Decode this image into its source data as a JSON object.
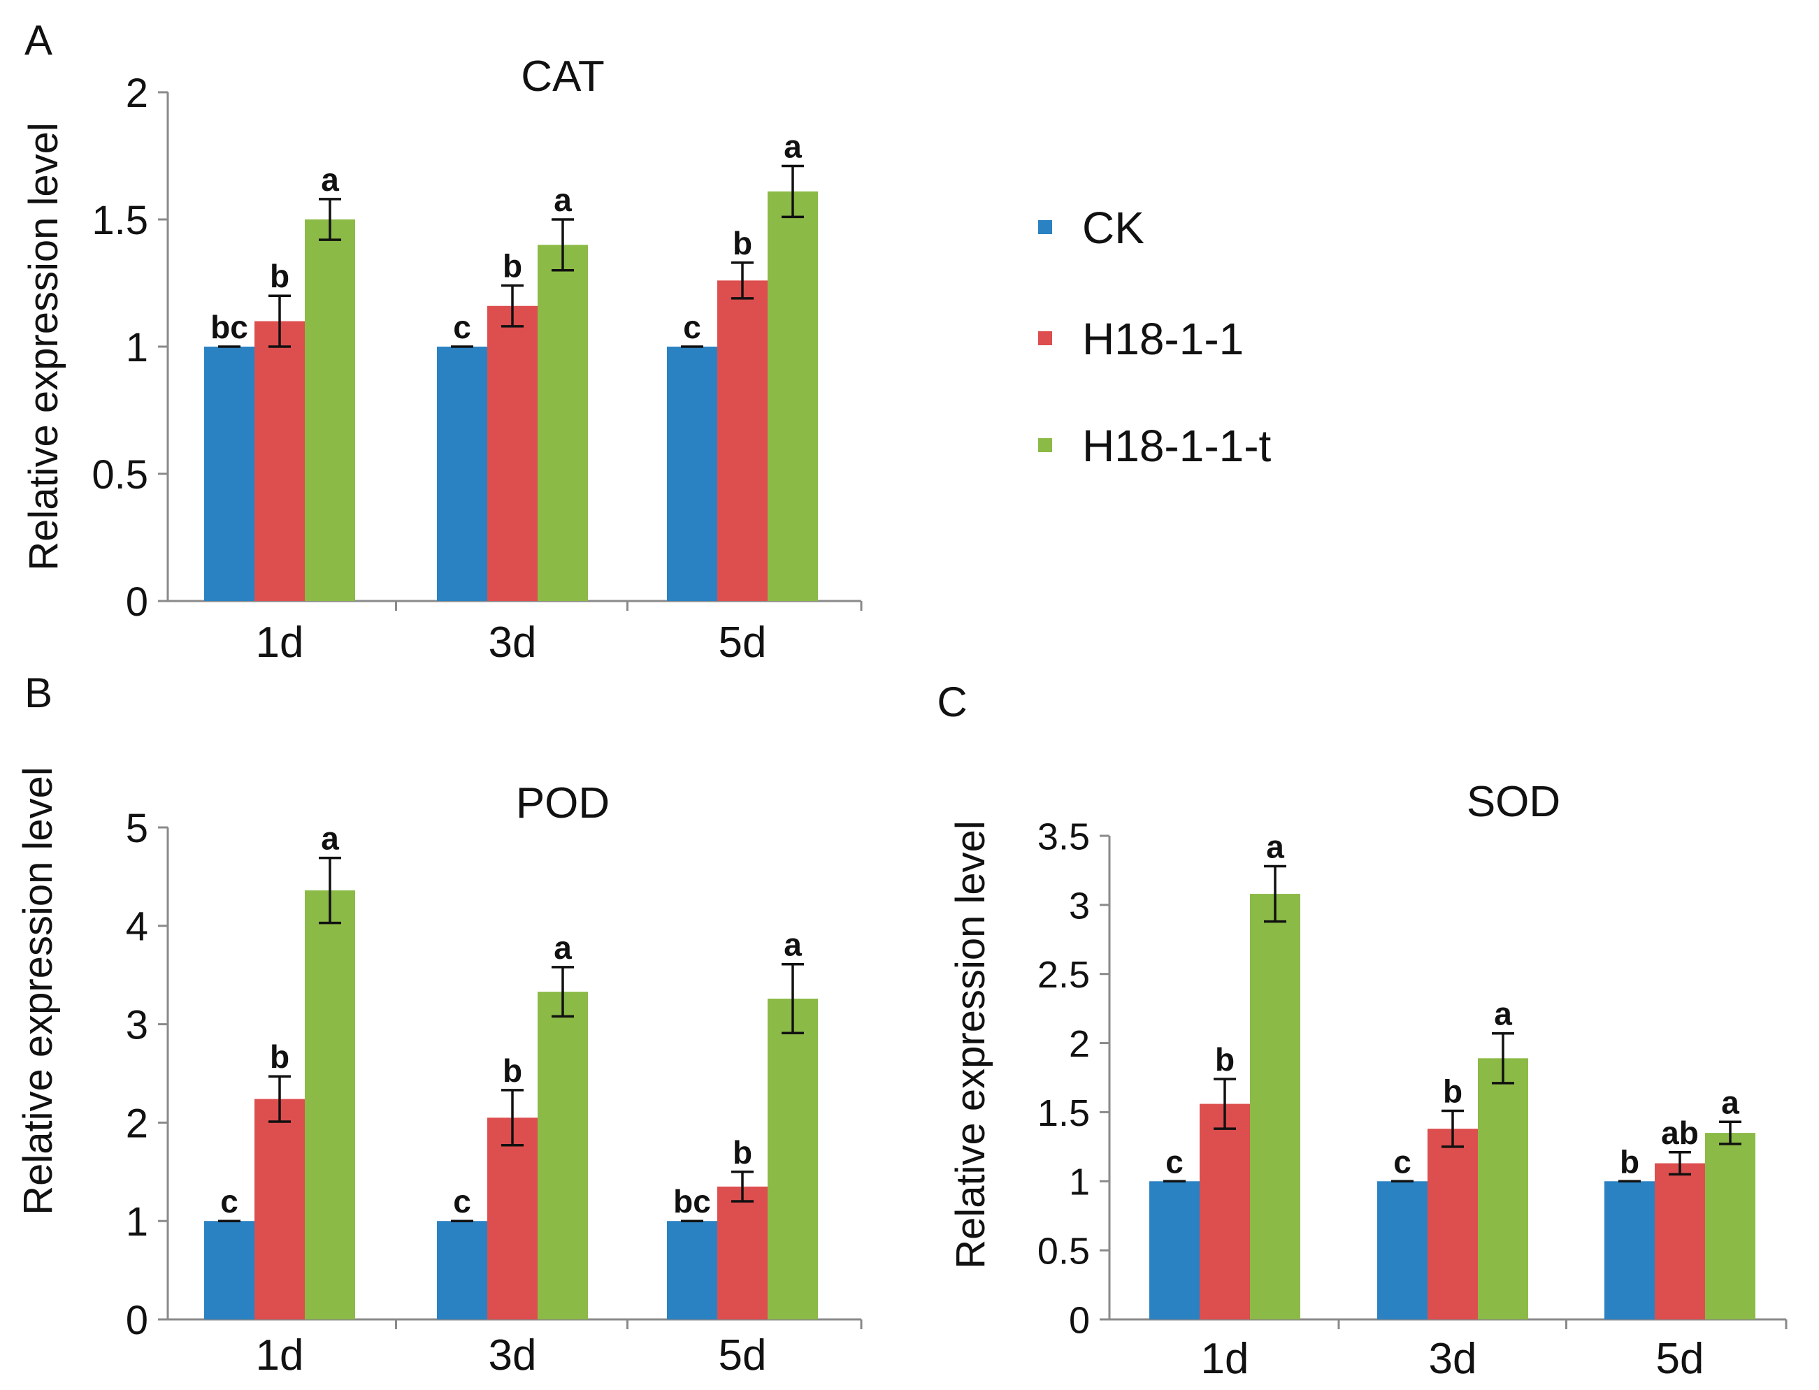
{
  "legend": {
    "entries": [
      {
        "name": "CK",
        "color": "#2a82c2"
      },
      {
        "name": "H18-1-1",
        "color": "#dd4e4e"
      },
      {
        "name": "H18-1-1-t",
        "color": "#8cba46"
      }
    ]
  },
  "chart_data": [
    {
      "type": "bar",
      "panel": "A",
      "title": "CAT",
      "xlabel": "",
      "ylabel": "Relative expression level",
      "categories": [
        "1d",
        "3d",
        "5d"
      ],
      "ylim": [
        0,
        2
      ],
      "yticks": [
        0,
        0.5,
        1,
        1.5,
        2
      ],
      "ytick_labels": [
        "0",
        "0.5",
        "1",
        "1.5",
        "2"
      ],
      "grid": false,
      "series": [
        {
          "name": "CK",
          "values": [
            1.0,
            1.0,
            1.0
          ],
          "errors": [
            0.0,
            0.0,
            0.0
          ],
          "labels": [
            "bc",
            "c",
            "c"
          ]
        },
        {
          "name": "H18-1-1",
          "values": [
            1.1,
            1.16,
            1.26
          ],
          "errors": [
            0.1,
            0.08,
            0.07
          ],
          "labels": [
            "b",
            "b",
            "b"
          ]
        },
        {
          "name": "H18-1-1-t",
          "values": [
            1.5,
            1.4,
            1.61
          ],
          "errors": [
            0.08,
            0.1,
            0.1
          ],
          "labels": [
            "a",
            "a",
            "a"
          ]
        }
      ]
    },
    {
      "type": "bar",
      "panel": "B",
      "title": "POD",
      "xlabel": "",
      "ylabel": "Relative expression level",
      "categories": [
        "1d",
        "3d",
        "5d"
      ],
      "ylim": [
        0,
        5
      ],
      "yticks": [
        0,
        1,
        2,
        3,
        4,
        5
      ],
      "ytick_labels": [
        "0",
        "1",
        "2",
        "3",
        "4",
        "5"
      ],
      "grid": false,
      "series": [
        {
          "name": "CK",
          "values": [
            1.0,
            1.0,
            1.0
          ],
          "errors": [
            0.0,
            0.0,
            0.0
          ],
          "labels": [
            "c",
            "c",
            "bc"
          ]
        },
        {
          "name": "H18-1-1",
          "values": [
            2.24,
            2.05,
            1.35
          ],
          "errors": [
            0.23,
            0.28,
            0.15
          ],
          "labels": [
            "b",
            "b",
            "b"
          ]
        },
        {
          "name": "H18-1-1-t",
          "values": [
            4.36,
            3.33,
            3.26
          ],
          "errors": [
            0.33,
            0.25,
            0.35
          ],
          "labels": [
            "a",
            "a",
            "a"
          ]
        }
      ]
    },
    {
      "type": "bar",
      "panel": "C",
      "title": "SOD",
      "xlabel": "",
      "ylabel": "Relative expression level",
      "categories": [
        "1d",
        "3d",
        "5d"
      ],
      "ylim": [
        0,
        3.5
      ],
      "yticks": [
        0,
        0.5,
        1,
        1.5,
        2,
        2.5,
        3,
        3.5
      ],
      "ytick_labels": [
        "0",
        "0.5",
        "1",
        "1.5",
        "2",
        "2.5",
        "3",
        "3.5"
      ],
      "grid": false,
      "series": [
        {
          "name": "CK",
          "values": [
            1.0,
            1.0,
            1.0
          ],
          "errors": [
            0.0,
            0.0,
            0.0
          ],
          "labels": [
            "c",
            "c",
            "b"
          ]
        },
        {
          "name": "H18-1-1",
          "values": [
            1.56,
            1.38,
            1.13
          ],
          "errors": [
            0.18,
            0.13,
            0.08
          ],
          "labels": [
            "b",
            "b",
            "ab"
          ]
        },
        {
          "name": "H18-1-1-t",
          "values": [
            3.08,
            1.89,
            1.35
          ],
          "errors": [
            0.2,
            0.18,
            0.08
          ],
          "labels": [
            "a",
            "a",
            "a"
          ]
        }
      ]
    }
  ]
}
